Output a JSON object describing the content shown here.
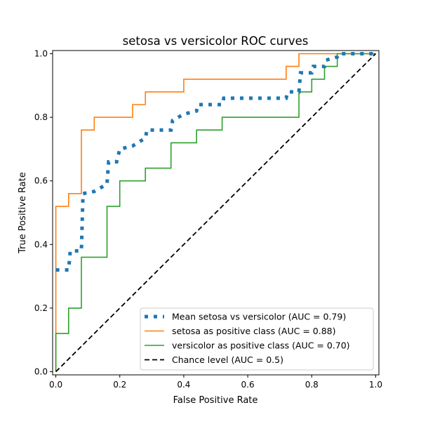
{
  "chart_data": {
    "type": "line",
    "title": "setosa vs versicolor ROC curves",
    "xlabel": "False Positive Rate",
    "ylabel": "True Positive Rate",
    "xlim": [
      -0.01,
      1.01
    ],
    "ylim": [
      -0.01,
      1.01
    ],
    "xticks": [
      "0.0",
      "0.2",
      "0.4",
      "0.6",
      "0.8",
      "1.0"
    ],
    "yticks": [
      "0.0",
      "0.2",
      "0.4",
      "0.6",
      "0.8",
      "1.0"
    ],
    "grid": false,
    "legend_position": "lower-right",
    "series": [
      {
        "name": "Mean setosa vs versicolor (AUC = 0.79)",
        "color": "#1f77b4",
        "style": "dotted",
        "x": [
          0,
          0.04,
          0.045,
          0.08,
          0.085,
          0.12,
          0.16,
          0.165,
          0.19,
          0.2,
          0.24,
          0.28,
          0.285,
          0.36,
          0.365,
          0.4,
          0.44,
          0.445,
          0.52,
          0.525,
          0.72,
          0.725,
          0.76,
          0.765,
          0.8,
          0.805,
          0.84,
          0.845,
          0.88,
          0.885,
          1.0
        ],
        "y": [
          0.32,
          0.32,
          0.38,
          0.38,
          0.56,
          0.567,
          0.59,
          0.66,
          0.66,
          0.7,
          0.71,
          0.735,
          0.76,
          0.76,
          0.79,
          0.81,
          0.82,
          0.84,
          0.84,
          0.86,
          0.86,
          0.88,
          0.88,
          0.94,
          0.94,
          0.96,
          0.96,
          0.98,
          0.99,
          1.0,
          1.0
        ]
      },
      {
        "name": "setosa as positive class (AUC = 0.88)",
        "color": "#ff7f0e",
        "style": "step",
        "x": [
          0,
          0,
          0.04,
          0.04,
          0.08,
          0.08,
          0.12,
          0.12,
          0.24,
          0.24,
          0.28,
          0.28,
          0.4,
          0.4,
          0.72,
          0.72,
          0.76,
          0.76,
          1.0
        ],
        "y": [
          0,
          0.52,
          0.52,
          0.56,
          0.56,
          0.76,
          0.76,
          0.8,
          0.8,
          0.84,
          0.84,
          0.88,
          0.88,
          0.92,
          0.92,
          0.96,
          0.96,
          1.0,
          1.0
        ]
      },
      {
        "name": "versicolor as positive class (AUC = 0.70)",
        "color": "#2ca02c",
        "style": "step",
        "x": [
          0,
          0,
          0.04,
          0.04,
          0.08,
          0.08,
          0.16,
          0.16,
          0.2,
          0.2,
          0.28,
          0.28,
          0.36,
          0.36,
          0.44,
          0.44,
          0.52,
          0.52,
          0.76,
          0.76,
          0.8,
          0.8,
          0.84,
          0.84,
          0.88,
          0.88,
          1.0
        ],
        "y": [
          0,
          0.12,
          0.12,
          0.2,
          0.2,
          0.36,
          0.36,
          0.52,
          0.52,
          0.6,
          0.6,
          0.64,
          0.64,
          0.72,
          0.72,
          0.76,
          0.76,
          0.8,
          0.8,
          0.88,
          0.88,
          0.92,
          0.92,
          0.96,
          0.96,
          1.0,
          1.0
        ]
      },
      {
        "name": "Chance level (AUC = 0.5)",
        "color": "#000000",
        "style": "dashed",
        "x": [
          0,
          1
        ],
        "y": [
          0,
          1
        ]
      }
    ]
  }
}
